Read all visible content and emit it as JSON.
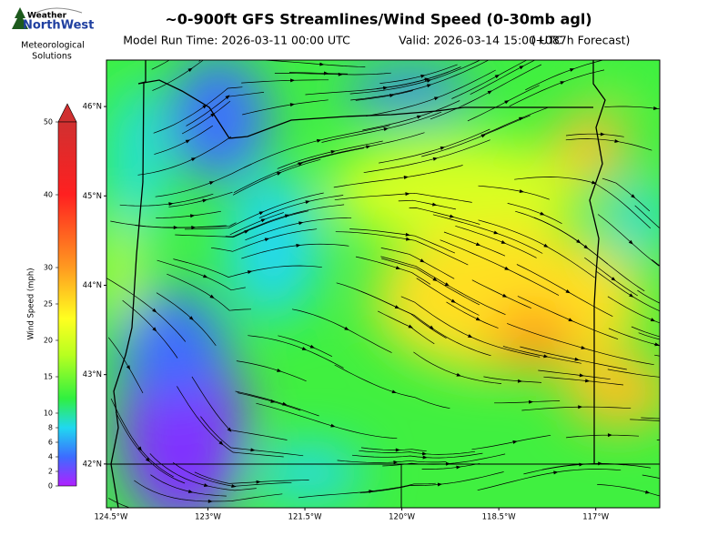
{
  "header": {
    "title": "~0-900ft GFS Streamlines/Wind Speed (0-30mb agl)",
    "run_time": "Model Run Time: 2026-03-11 00:00 UTC",
    "valid": "Valid: 2026-03-14 15:00 UTC",
    "forecast": "(+087h Forecast)"
  },
  "logo": {
    "brand_top": "Weather",
    "brand": "NorthWest",
    "caption": [
      "Meteorological",
      "Solutions"
    ]
  },
  "colorbar": {
    "label": "Wind Speed (mph)",
    "lim": [
      0,
      50
    ],
    "ticks": [
      0,
      2,
      4,
      6,
      8,
      10,
      15,
      20,
      25,
      30,
      40,
      50
    ]
  },
  "map": {
    "lonlim": [
      -124.57,
      -116.01
    ],
    "latlim": [
      41.51,
      46.52
    ],
    "lonticks": [
      {
        "value": -124.5,
        "label": "124.5°W"
      },
      {
        "value": -123,
        "label": "123°W"
      },
      {
        "value": -121.5,
        "label": "121.5°W"
      },
      {
        "value": -120,
        "label": "120°W"
      },
      {
        "value": -118.5,
        "label": "118.5°W"
      },
      {
        "value": -117,
        "label": "117°W"
      }
    ],
    "latticks": [
      {
        "value": 46,
        "label": "46°N"
      },
      {
        "value": 45,
        "label": "45°N"
      },
      {
        "value": 44,
        "label": "44°N"
      },
      {
        "value": 43,
        "label": "43°N"
      },
      {
        "value": 42,
        "label": "42°N"
      }
    ]
  }
}
